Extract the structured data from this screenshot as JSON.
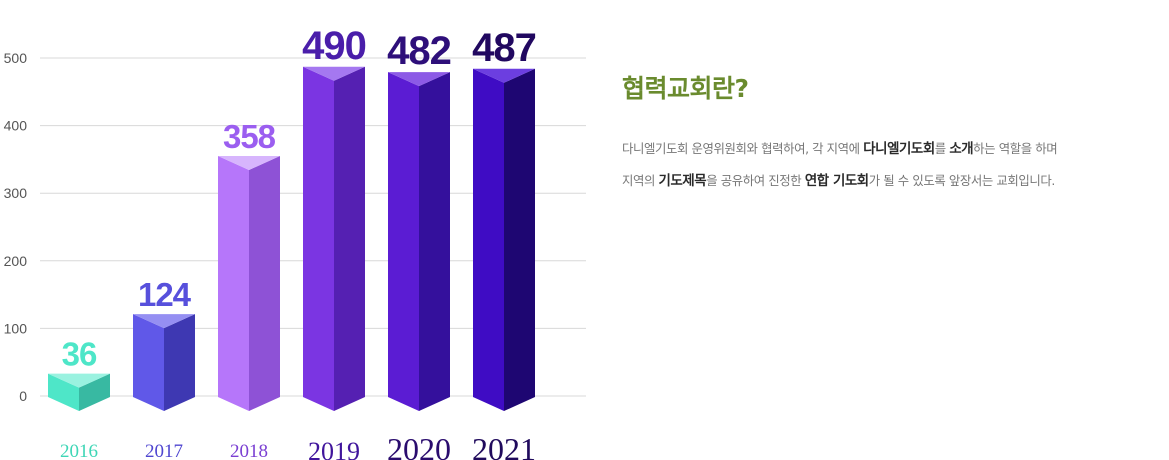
{
  "chart_data": {
    "type": "bar",
    "categories": [
      "2016",
      "2017",
      "2018",
      "2019",
      "2020",
      "2021"
    ],
    "values": [
      36,
      124,
      358,
      490,
      482,
      487
    ],
    "data_labels": [
      "36",
      "124",
      "358",
      "490",
      "482",
      "487"
    ],
    "ylim": [
      0,
      500
    ],
    "yticks": [
      "0",
      "100",
      "200",
      "300",
      "400",
      "500"
    ],
    "grid": true,
    "legend": "none",
    "bar_colors": [
      {
        "front": "#4ee6c8",
        "side": "#38b9a2",
        "top": "#9af2e0",
        "label": "#4ee6c8"
      },
      {
        "front": "#6058e8",
        "side": "#3e38b2",
        "top": "#958ff2",
        "label": "#5750dc"
      },
      {
        "front": "#b676fa",
        "side": "#8e52d6",
        "top": "#d7b5fd",
        "label": "#9b5ef0"
      },
      {
        "front": "#7b35e2",
        "side": "#5520b2",
        "top": "#a578f0",
        "label": "#4a1eaa"
      },
      {
        "front": "#5b1cd3",
        "side": "#34109c",
        "top": "#8c5ae6",
        "label": "#2e0f7a"
      },
      {
        "front": "#3f0cc4",
        "side": "#1e0672",
        "top": "#6c3ee0",
        "label": "#210860"
      }
    ],
    "tick_label_colors": [
      "#3ed6b6",
      "#4f46d0",
      "#7a3fd2",
      "#40159c",
      "#2a0c6e",
      "#200a5c"
    ]
  },
  "info": {
    "title": "협력교회란?",
    "line1": {
      "t1": "다니엘기도회 운영위원회와 협력하여, 각 지역에 ",
      "b1": "다니엘기도회",
      "t2": "를 ",
      "b2": "소개",
      "t3": "하는 역할을 하며"
    },
    "line2": {
      "t1": "지역의 ",
      "b1": "기도제목",
      "t2": "을 공유하여 진정한 ",
      "b2": "연합 기도회",
      "t3": "가 될 수 있도록 앞장서는 교회입니다."
    }
  }
}
